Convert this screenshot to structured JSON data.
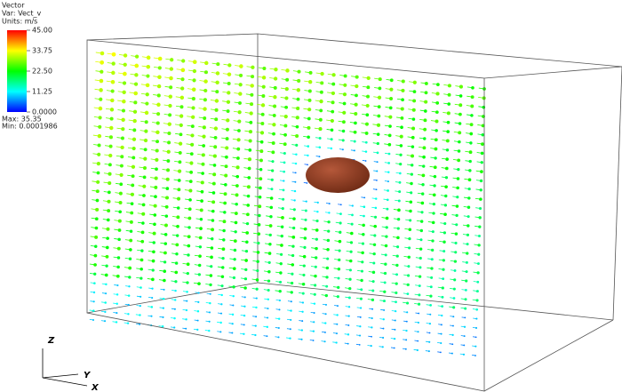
{
  "legend": {
    "title": "Vector",
    "variable": "Var: Vect_v",
    "units": "Units: m/s",
    "ticks": [
      {
        "value": 45,
        "label": "45.00"
      },
      {
        "value": 33.75,
        "label": "33.75"
      },
      {
        "value": 22.5,
        "label": "22.50"
      },
      {
        "value": 11.25,
        "label": "11.25"
      },
      {
        "value": 0,
        "label": "0.0000"
      }
    ],
    "max": "Max: 35.35",
    "min": "Min: 0.0001986"
  },
  "axes": {
    "z": "Z",
    "y": "Y",
    "x": "X"
  }
}
